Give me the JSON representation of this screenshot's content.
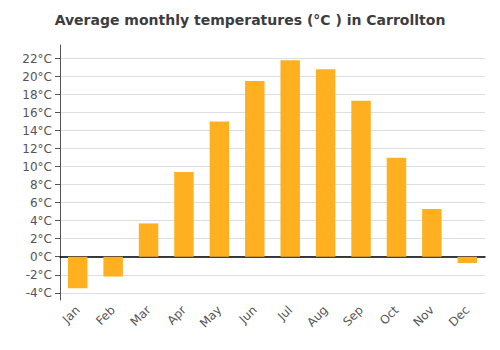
{
  "chart_data": {
    "type": "bar",
    "title": "Average monthly temperatures (°C ) in Carrollton",
    "categories": [
      "Jan",
      "Feb",
      "Mar",
      "Apr",
      "May",
      "Jun",
      "Jul",
      "Aug",
      "Sep",
      "Oct",
      "Nov",
      "Dec"
    ],
    "values": [
      -3.5,
      -2.2,
      3.7,
      9.4,
      15.0,
      19.5,
      21.8,
      20.8,
      17.3,
      11.0,
      5.3,
      -0.7
    ],
    "color": "#FFB020",
    "ylim": [
      -4.8,
      23.5
    ],
    "yticks": [
      {
        "value": -4,
        "label": "-4°C"
      },
      {
        "value": -2,
        "label": "-2°C"
      },
      {
        "value": 0,
        "label": "0°C"
      },
      {
        "value": 2,
        "label": "2°C"
      },
      {
        "value": 4,
        "label": "4°C"
      },
      {
        "value": 6,
        "label": "6°C"
      },
      {
        "value": 8,
        "label": "8°C"
      },
      {
        "value": 10,
        "label": "10°C"
      },
      {
        "value": 12,
        "label": "12°C"
      },
      {
        "value": 14,
        "label": "14°C"
      },
      {
        "value": 16,
        "label": "16°C"
      },
      {
        "value": 18,
        "label": "18°C"
      },
      {
        "value": 20,
        "label": "20°C"
      },
      {
        "value": 22,
        "label": "22°C"
      }
    ],
    "grid": true
  }
}
